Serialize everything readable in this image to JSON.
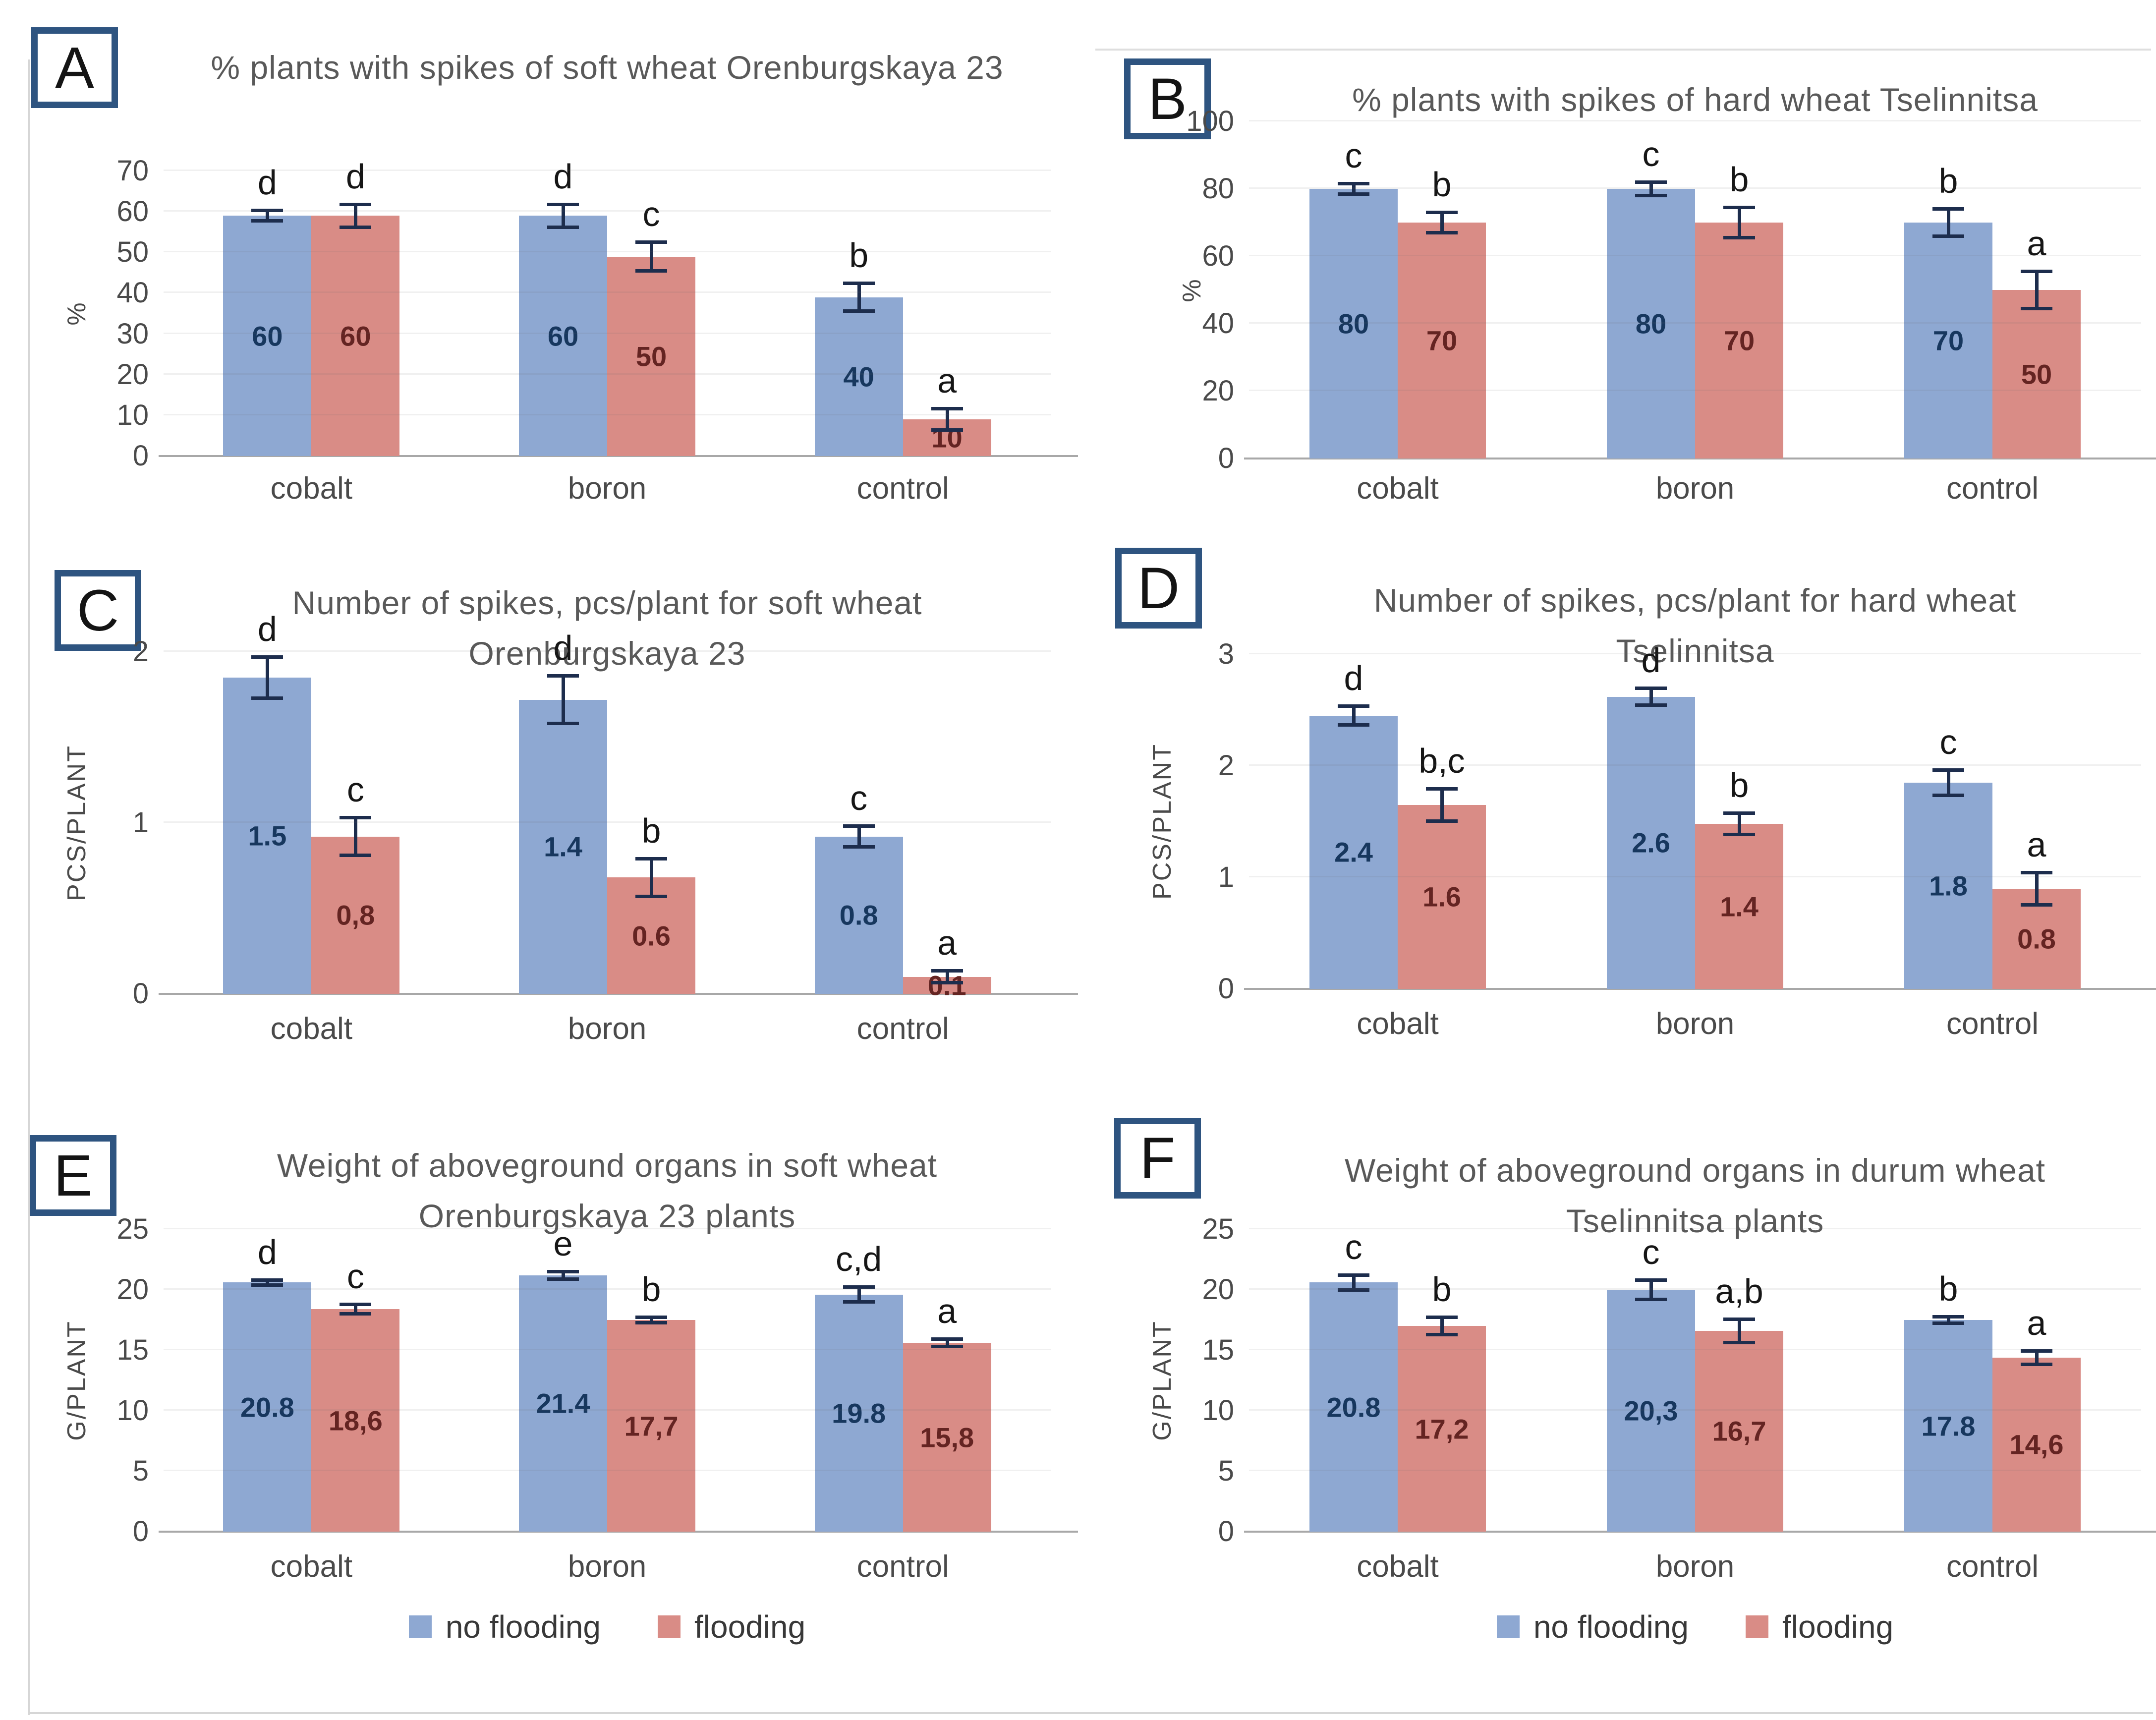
{
  "colors": {
    "no_flooding": "#8ea8d2",
    "flooding": "#d98c86",
    "label_no_flooding": "#17375e",
    "label_flooding": "#642422",
    "error_bar": "#1d2d4d",
    "axis_text": "#4a4a4a",
    "title_text": "#595959",
    "panel_border": "#2e5480",
    "baseline": "#a8a8a8"
  },
  "legend": {
    "items": [
      {
        "label": "no flooding",
        "color_key": "no_flooding"
      },
      {
        "label": "flooding",
        "color_key": "flooding"
      }
    ]
  },
  "chart_data": [
    {
      "panel_label": "A",
      "type": "bar",
      "title": "% plants with spikes of soft wheat Orenburgskaya 23",
      "ylabel": "%",
      "ylim": [
        0,
        70
      ],
      "yticks": [
        0,
        10,
        20,
        30,
        40,
        50,
        60,
        70
      ],
      "grid": true,
      "categories": [
        "cobalt",
        "boron",
        "control"
      ],
      "series": [
        {
          "name": "no flooding",
          "color": "no_flooding",
          "label_color": "label_no_flooding",
          "values": [
            60,
            60,
            40
          ],
          "labels": [
            "60",
            "60",
            "40"
          ],
          "bar_heights": [
            59,
            59,
            39
          ],
          "errors": [
            1.7,
            3.2,
            3.8
          ],
          "letters": [
            "d",
            "d",
            "b"
          ]
        },
        {
          "name": "flooding",
          "color": "flooding",
          "label_color": "label_flooding",
          "values": [
            60,
            50,
            10
          ],
          "labels": [
            "60",
            "50",
            "10"
          ],
          "bar_heights": [
            59,
            49,
            9
          ],
          "errors": [
            3.2,
            4,
            3
          ],
          "letters": [
            "d",
            "c",
            "a"
          ]
        }
      ]
    },
    {
      "panel_label": "B",
      "type": "bar",
      "title": "% plants with spikes of hard wheat Tselinnitsa",
      "ylabel": "%",
      "ylim": [
        0,
        100
      ],
      "yticks": [
        0,
        20,
        40,
        60,
        80,
        100
      ],
      "grid": true,
      "categories": [
        "cobalt",
        "boron",
        "control"
      ],
      "series": [
        {
          "name": "no flooding",
          "color": "no_flooding",
          "label_color": "label_no_flooding",
          "values": [
            80,
            80,
            70
          ],
          "labels": [
            "80",
            "80",
            "70"
          ],
          "bar_heights": [
            80,
            80,
            70
          ],
          "errors": [
            2,
            2.5,
            4.5
          ],
          "letters": [
            "c",
            "c",
            "b"
          ]
        },
        {
          "name": "flooding",
          "color": "flooding",
          "label_color": "label_flooding",
          "values": [
            70,
            70,
            50
          ],
          "labels": [
            "70",
            "70",
            "50"
          ],
          "bar_heights": [
            70,
            70,
            50
          ],
          "errors": [
            3.5,
            5,
            6
          ],
          "letters": [
            "b",
            "b",
            "a"
          ]
        }
      ]
    },
    {
      "panel_label": "C",
      "type": "bar",
      "title": "Number of spikes, pcs/plant for soft wheat Orenburgskaya 23",
      "ylabel": "PCS/PLANT",
      "ylim": [
        0,
        2
      ],
      "yticks": [
        0,
        1,
        2
      ],
      "grid": true,
      "categories": [
        "cobalt",
        "boron",
        "control"
      ],
      "series": [
        {
          "name": "no flooding",
          "color": "no_flooding",
          "label_color": "label_no_flooding",
          "values": [
            1.5,
            1.4,
            0.8
          ],
          "labels": [
            "1.5",
            "1.4",
            "0.8"
          ],
          "bar_heights": [
            1.85,
            1.72,
            0.92
          ],
          "errors": [
            0.13,
            0.15,
            0.07
          ],
          "letters": [
            "d",
            "d",
            "c"
          ]
        },
        {
          "name": "flooding",
          "color": "flooding",
          "label_color": "label_flooding",
          "values": [
            0.8,
            0.6,
            0.1
          ],
          "labels": [
            "0,8",
            "0.6",
            "0.1"
          ],
          "bar_heights": [
            0.92,
            0.68,
            0.1
          ],
          "errors": [
            0.12,
            0.12,
            0.045
          ],
          "letters": [
            "c",
            "b",
            "a"
          ]
        }
      ]
    },
    {
      "panel_label": "D",
      "type": "bar",
      "title": "Number of spikes, pcs/plant for hard wheat Tselinnitsa",
      "ylabel": "PCS/PLANT",
      "ylim": [
        0,
        3
      ],
      "yticks": [
        0,
        1,
        2,
        3
      ],
      "grid": true,
      "categories": [
        "cobalt",
        "boron",
        "control"
      ],
      "series": [
        {
          "name": "no flooding",
          "color": "no_flooding",
          "label_color": "label_no_flooding",
          "values": [
            2.4,
            2.6,
            1.8
          ],
          "labels": [
            "2.4",
            "2.6",
            "1.8"
          ],
          "bar_heights": [
            2.45,
            2.62,
            1.85
          ],
          "errors": [
            0.1,
            0.09,
            0.13
          ],
          "letters": [
            "d",
            "d",
            "c"
          ]
        },
        {
          "name": "flooding",
          "color": "flooding",
          "label_color": "label_flooding",
          "values": [
            1.6,
            1.4,
            0.8
          ],
          "labels": [
            "1.6",
            "1.4",
            "0.8"
          ],
          "bar_heights": [
            1.65,
            1.48,
            0.9
          ],
          "errors": [
            0.16,
            0.11,
            0.16
          ],
          "letters": [
            "b,c",
            "b",
            "a"
          ]
        }
      ]
    },
    {
      "panel_label": "E",
      "type": "bar",
      "title": "Weight of aboveground organs in soft wheat Orenburgskaya 23 plants",
      "ylabel": "G/PLANT",
      "ylim": [
        0,
        25
      ],
      "yticks": [
        0,
        5,
        10,
        15,
        20,
        25
      ],
      "grid": true,
      "categories": [
        "cobalt",
        "boron",
        "control"
      ],
      "series": [
        {
          "name": "no flooding",
          "color": "no_flooding",
          "label_color": "label_no_flooding",
          "values": [
            20.8,
            21.4,
            19.8
          ],
          "labels": [
            "20.8",
            "21.4",
            "19.8"
          ],
          "bar_heights": [
            20.6,
            21.2,
            19.6
          ],
          "errors": [
            0.35,
            0.45,
            0.75
          ],
          "letters": [
            "d",
            "e",
            "c,d"
          ]
        },
        {
          "name": "flooding",
          "color": "flooding",
          "label_color": "label_flooding",
          "values": [
            18.6,
            17.7,
            15.8
          ],
          "labels": [
            "18,6",
            "17,7",
            "15,8"
          ],
          "bar_heights": [
            18.4,
            17.5,
            15.6
          ],
          "errors": [
            0.55,
            0.35,
            0.45
          ],
          "letters": [
            "c",
            "b",
            "a"
          ]
        }
      ]
    },
    {
      "panel_label": "F",
      "type": "bar",
      "title": "Weight of aboveground organs in durum wheat Tselinnitsa plants",
      "ylabel": "G/PLANT",
      "ylim": [
        0,
        25
      ],
      "yticks": [
        0,
        5,
        10,
        15,
        20,
        25
      ],
      "grid": true,
      "categories": [
        "cobalt",
        "boron",
        "control"
      ],
      "series": [
        {
          "name": "no flooding",
          "color": "no_flooding",
          "label_color": "label_no_flooding",
          "values": [
            20.8,
            20.3,
            17.8
          ],
          "labels": [
            "20.8",
            "20,3",
            "17.8"
          ],
          "bar_heights": [
            20.6,
            20.0,
            17.5
          ],
          "errors": [
            0.75,
            0.95,
            0.4
          ],
          "letters": [
            "c",
            "c",
            "b"
          ]
        },
        {
          "name": "flooding",
          "color": "flooding",
          "label_color": "label_flooding",
          "values": [
            17.2,
            16.7,
            14.6
          ],
          "labels": [
            "17,2",
            "16,7",
            "14,6"
          ],
          "bar_heights": [
            17.0,
            16.6,
            14.4
          ],
          "errors": [
            0.85,
            1.1,
            0.7
          ],
          "letters": [
            "b",
            "a,b",
            "a"
          ]
        }
      ]
    }
  ]
}
